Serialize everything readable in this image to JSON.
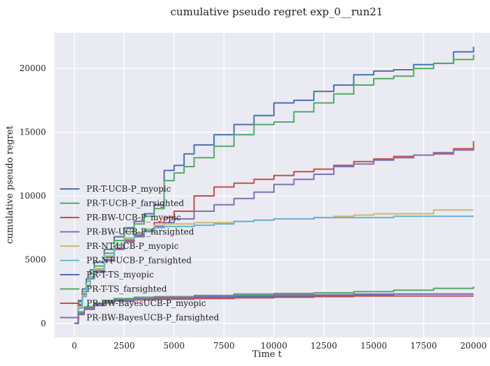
{
  "chart_data": {
    "type": "line",
    "title": "cumulative pseudo regret exp_0__run21",
    "xlabel": "Time t",
    "ylabel": "cumulative pseudo regret",
    "xlim": [
      -1000,
      21000
    ],
    "ylim": [
      -1100,
      22800
    ],
    "xticks": [
      0,
      2500,
      5000,
      7500,
      10000,
      12500,
      15000,
      17500,
      20000
    ],
    "yticks": [
      0,
      5000,
      10000,
      15000,
      20000
    ],
    "grid": true,
    "legend_position": "left-bottom",
    "series": [
      {
        "name": "PR-T-UCB-P_myopic",
        "color": "#4c72b0",
        "x": [
          0,
          200,
          400,
          600,
          800,
          1000,
          1500,
          2000,
          2500,
          3000,
          3500,
          4000,
          4500,
          5000,
          5500,
          6000,
          7000,
          8000,
          9000,
          10000,
          11000,
          12000,
          13000,
          14000,
          15000,
          16000,
          17000,
          18000,
          19000,
          20000
        ],
        "y": [
          0,
          1800,
          2700,
          3500,
          4200,
          4800,
          5800,
          6800,
          7500,
          8000,
          8600,
          9300,
          12000,
          12400,
          13300,
          14000,
          14800,
          15600,
          16300,
          17300,
          17500,
          18200,
          18700,
          19500,
          19800,
          19900,
          20300,
          20400,
          21300,
          21700
        ]
      },
      {
        "name": "PR-T-UCB-P_farsighted",
        "color": "#55a868",
        "x": [
          0,
          200,
          400,
          600,
          800,
          1000,
          1500,
          2000,
          2500,
          3000,
          3500,
          4000,
          4500,
          5000,
          5500,
          6000,
          7000,
          8000,
          9000,
          10000,
          11000,
          12000,
          13000,
          14000,
          15000,
          16000,
          17000,
          18000,
          19000,
          20000
        ],
        "y": [
          0,
          1700,
          2500,
          3300,
          3900,
          4500,
          5500,
          6500,
          7200,
          7800,
          8400,
          9000,
          11200,
          11800,
          12300,
          13000,
          13900,
          14800,
          15600,
          15800,
          16600,
          17300,
          18000,
          18700,
          19200,
          19400,
          20000,
          20400,
          20700,
          21100
        ]
      },
      {
        "name": "PR-BW-UCB-P_myopic",
        "color": "#c44e52",
        "x": [
          0,
          200,
          400,
          600,
          800,
          1000,
          1500,
          2000,
          2500,
          3000,
          3500,
          4000,
          4500,
          5000,
          6000,
          7000,
          8000,
          9000,
          10000,
          11000,
          12000,
          13000,
          14000,
          15000,
          16000,
          17000,
          18000,
          19000,
          20000
        ],
        "y": [
          0,
          1500,
          2300,
          3000,
          3600,
          4100,
          5000,
          5900,
          6500,
          6900,
          7400,
          7900,
          8300,
          8800,
          10000,
          10700,
          11000,
          11300,
          11600,
          11900,
          12100,
          12400,
          12700,
          12900,
          13100,
          13200,
          13300,
          13700,
          14300
        ]
      },
      {
        "name": "PR-BW-UCB-P_farsighted",
        "color": "#8172b2",
        "x": [
          0,
          200,
          400,
          600,
          800,
          1000,
          1500,
          2000,
          2500,
          3000,
          3500,
          4000,
          4500,
          5000,
          6000,
          7000,
          8000,
          9000,
          10000,
          11000,
          12000,
          13000,
          14000,
          15000,
          16000,
          17000,
          18000,
          19000,
          20000
        ],
        "y": [
          0,
          1400,
          2200,
          2900,
          3500,
          4000,
          4900,
          5800,
          6400,
          6800,
          7200,
          7600,
          7900,
          8200,
          8800,
          9300,
          9800,
          10300,
          10900,
          11300,
          11700,
          12300,
          12500,
          12800,
          13000,
          13200,
          13400,
          13600,
          13700
        ]
      },
      {
        "name": "PR-NT-UCB-P_myopic",
        "color": "#ccb974",
        "x": [
          0,
          200,
          400,
          600,
          800,
          1000,
          1500,
          2000,
          2500,
          3000,
          3500,
          4000,
          4500,
          5000,
          6000,
          7000,
          8000,
          9000,
          10000,
          11000,
          12000,
          13000,
          14000,
          15000,
          16000,
          17000,
          18000,
          19000,
          20000
        ],
        "y": [
          0,
          1300,
          2200,
          3000,
          3700,
          4300,
          5300,
          6200,
          6700,
          7100,
          7400,
          7700,
          7800,
          7800,
          7900,
          7900,
          8000,
          8100,
          8200,
          8200,
          8300,
          8400,
          8500,
          8600,
          8600,
          8600,
          8900,
          8900,
          8900
        ]
      },
      {
        "name": "PR-NT-UCB-P_farsighted",
        "color": "#64b5cd",
        "x": [
          0,
          200,
          400,
          600,
          800,
          1000,
          1500,
          2000,
          2500,
          3000,
          3500,
          4000,
          4500,
          5000,
          6000,
          7000,
          8000,
          9000,
          10000,
          11000,
          12000,
          13000,
          14000,
          15000,
          16000,
          17000,
          18000,
          19000,
          20000
        ],
        "y": [
          0,
          1200,
          2100,
          2900,
          3600,
          4200,
          5200,
          6100,
          6600,
          7000,
          7300,
          7500,
          7600,
          7600,
          7700,
          7800,
          8000,
          8100,
          8200,
          8200,
          8300,
          8300,
          8300,
          8300,
          8400,
          8400,
          8400,
          8400,
          8400
        ]
      },
      {
        "name": "PR-T-TS_myopic",
        "color": "#4c72b0",
        "x": [
          0,
          200,
          500,
          1000,
          1500,
          2000,
          3000,
          4000,
          6000,
          8000,
          10000,
          12000,
          14000,
          16000,
          18000,
          20000
        ],
        "y": [
          0,
          800,
          1200,
          1500,
          1700,
          1850,
          1950,
          2000,
          2050,
          2100,
          2150,
          2200,
          2250,
          2300,
          2300,
          2300
        ]
      },
      {
        "name": "PR-T-TS_farsighted",
        "color": "#55a868",
        "x": [
          0,
          200,
          500,
          1000,
          1500,
          2000,
          3000,
          4000,
          6000,
          8000,
          10000,
          12000,
          14000,
          16000,
          18000,
          20000
        ],
        "y": [
          0,
          900,
          1300,
          1600,
          1800,
          1950,
          2050,
          2100,
          2200,
          2300,
          2350,
          2400,
          2500,
          2600,
          2750,
          2900
        ]
      },
      {
        "name": "PR-BW-BayesUCB-P_myopic",
        "color": "#c44e52",
        "x": [
          0,
          200,
          500,
          1000,
          1500,
          2000,
          3000,
          4000,
          6000,
          8000,
          10000,
          12000,
          14000,
          16000,
          18000,
          20000
        ],
        "y": [
          0,
          700,
          1100,
          1400,
          1600,
          1750,
          1850,
          1900,
          1950,
          2000,
          2050,
          2100,
          2150,
          2150,
          2150,
          2150
        ]
      },
      {
        "name": "PR-BW-BayesUCB-P_farsighted",
        "color": "#8172b2",
        "x": [
          0,
          200,
          500,
          1000,
          1500,
          2000,
          3000,
          4000,
          6000,
          8000,
          10000,
          12000,
          14000,
          16000,
          18000,
          20000
        ],
        "y": [
          0,
          750,
          1150,
          1450,
          1650,
          1800,
          1950,
          2050,
          2150,
          2200,
          2250,
          2250,
          2300,
          2300,
          2300,
          2300
        ]
      }
    ]
  }
}
